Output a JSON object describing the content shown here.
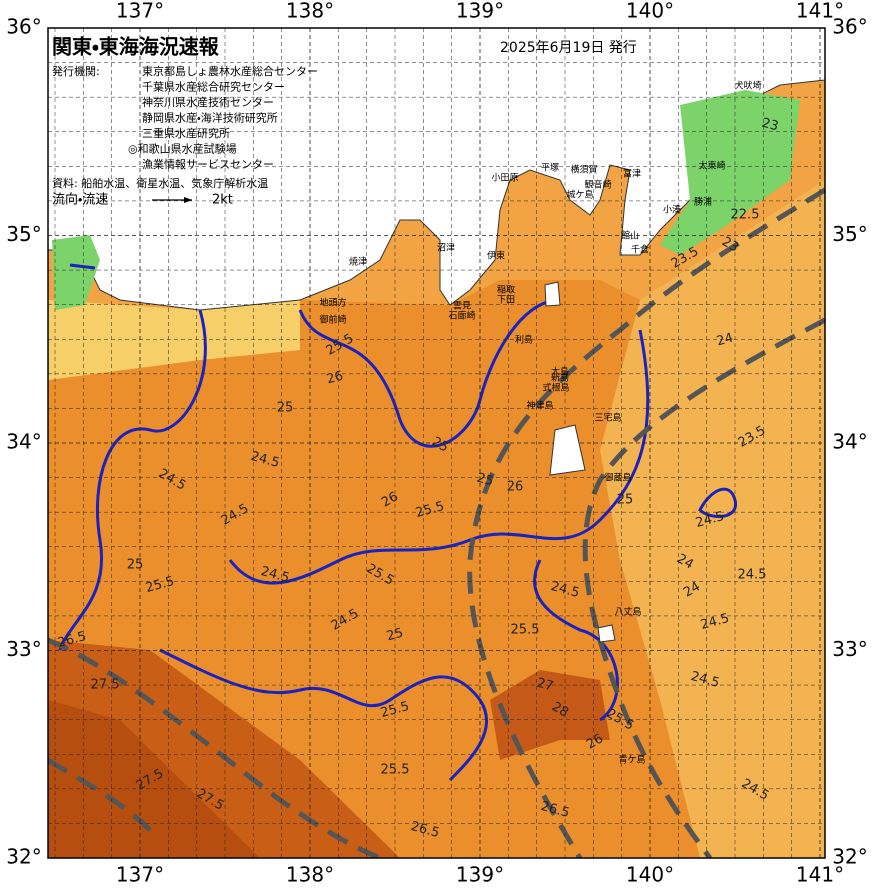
{
  "header": {
    "title": "関東・東海海況速報",
    "date": "2025年6月19日 発行",
    "issuer_label": "発行機関:",
    "issuers": [
      "東京都島しょ農林水産総合センター",
      "千葉県水産総合研究センター",
      "神奈川県水産技術センター",
      "静岡県水産・海洋技術研究所",
      "三重県水産研究所",
      "◎和歌山県水産試験場",
      "漁業情報サービスセンター"
    ],
    "source": "資料: 船舶水温、衛星水温、気象庁解析水温",
    "flow_label": "流向・流速",
    "flow_scale": "2kt"
  },
  "axes": {
    "lon_labels": [
      "137°",
      "138°",
      "139°",
      "140°",
      "141°"
    ],
    "lat_labels": [
      "36°",
      "35°",
      "34°",
      "33°",
      "32°"
    ]
  },
  "places": [
    "犬吠埼",
    "太東崎",
    "勝浦",
    "小湊",
    "千倉",
    "館山",
    "富津",
    "観音崎",
    "横須賀",
    "城ケ島",
    "平塚",
    "小田原",
    "伊東",
    "稲取",
    "下田",
    "石廊崎",
    "雲見",
    "沼津",
    "焼津",
    "地頭方",
    "御前崎",
    "大島",
    "利島",
    "新島",
    "式根島",
    "神津島",
    "三宅島",
    "御蔵島",
    "八丈島",
    "青ケ島"
  ],
  "isotherm_labels": [
    "25.5",
    "26",
    "25",
    "24.5",
    "25",
    "26",
    "25.5",
    "26",
    "25",
    "24.5",
    "24.5",
    "25.5",
    "25",
    "24.5",
    "25.5",
    "24.5",
    "25",
    "25.5",
    "24.5",
    "24",
    "24",
    "24.5",
    "24.5",
    "24.5",
    "25.5",
    "26",
    "25.5",
    "25.5",
    "26.5",
    "27.5",
    "27.5",
    "26.5",
    "27.5",
    "26.5",
    "24.5",
    "23.5",
    "24",
    "22.5",
    "23",
    "23",
    "23.5",
    "24.5",
    "25",
    "27",
    "28"
  ]
}
